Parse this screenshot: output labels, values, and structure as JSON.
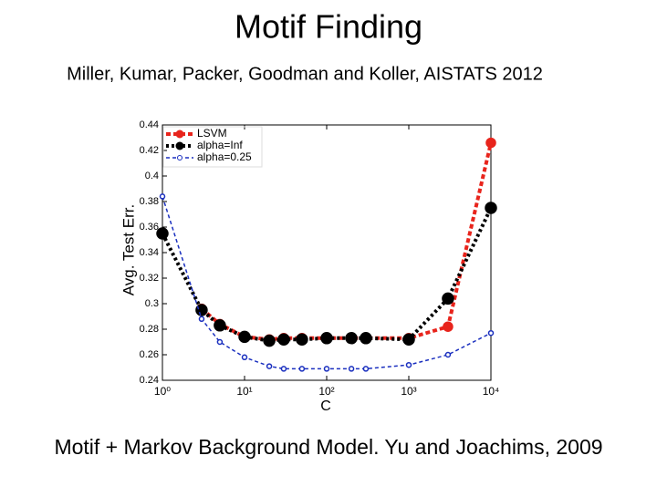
{
  "chart_data": {
    "type": "line",
    "title": "Motif Finding",
    "subtitle": "Miller, Kumar, Packer, Goodman and Koller, AISTATS 2012",
    "caption": "Motif + Markov Background Model. Yu and Joachims, 2009",
    "xlabel": "C",
    "ylabel": "Avg. Test Err.",
    "log_x": true,
    "x": [
      1,
      3,
      5,
      10,
      20,
      30,
      50,
      100,
      200,
      300,
      1000,
      3000,
      10000
    ],
    "xlim": [
      1,
      10000
    ],
    "xticks": [
      {
        "value": 1,
        "label": "10⁰"
      },
      {
        "value": 10,
        "label": "10¹"
      },
      {
        "value": 100,
        "label": "10²"
      },
      {
        "value": 1000,
        "label": "10³"
      },
      {
        "value": 10000,
        "label": "10⁴"
      }
    ],
    "ylim": [
      0.24,
      0.44
    ],
    "yticks": [
      0.24,
      0.26,
      0.28,
      0.3,
      0.32,
      0.34,
      0.36,
      0.38,
      0.4,
      0.42,
      0.44
    ],
    "legend": "top-left",
    "series": [
      {
        "name": "LSVM",
        "color": "#e8241c",
        "values": [
          null,
          0.296,
          0.284,
          0.274,
          0.272,
          0.273,
          0.273,
          0.273,
          0.273,
          0.273,
          0.273,
          0.282,
          0.426
        ]
      },
      {
        "name": "alpha=Inf",
        "color": "#000000",
        "values": [
          0.355,
          0.295,
          0.283,
          0.274,
          0.271,
          0.272,
          0.272,
          0.273,
          0.273,
          0.273,
          0.272,
          0.304,
          0.375
        ]
      },
      {
        "name": "alpha=0.25",
        "color": "#1a2fbf",
        "values": [
          0.384,
          0.288,
          0.27,
          0.258,
          0.251,
          0.249,
          0.249,
          0.249,
          0.249,
          0.249,
          0.252,
          0.26,
          0.277
        ]
      }
    ]
  }
}
